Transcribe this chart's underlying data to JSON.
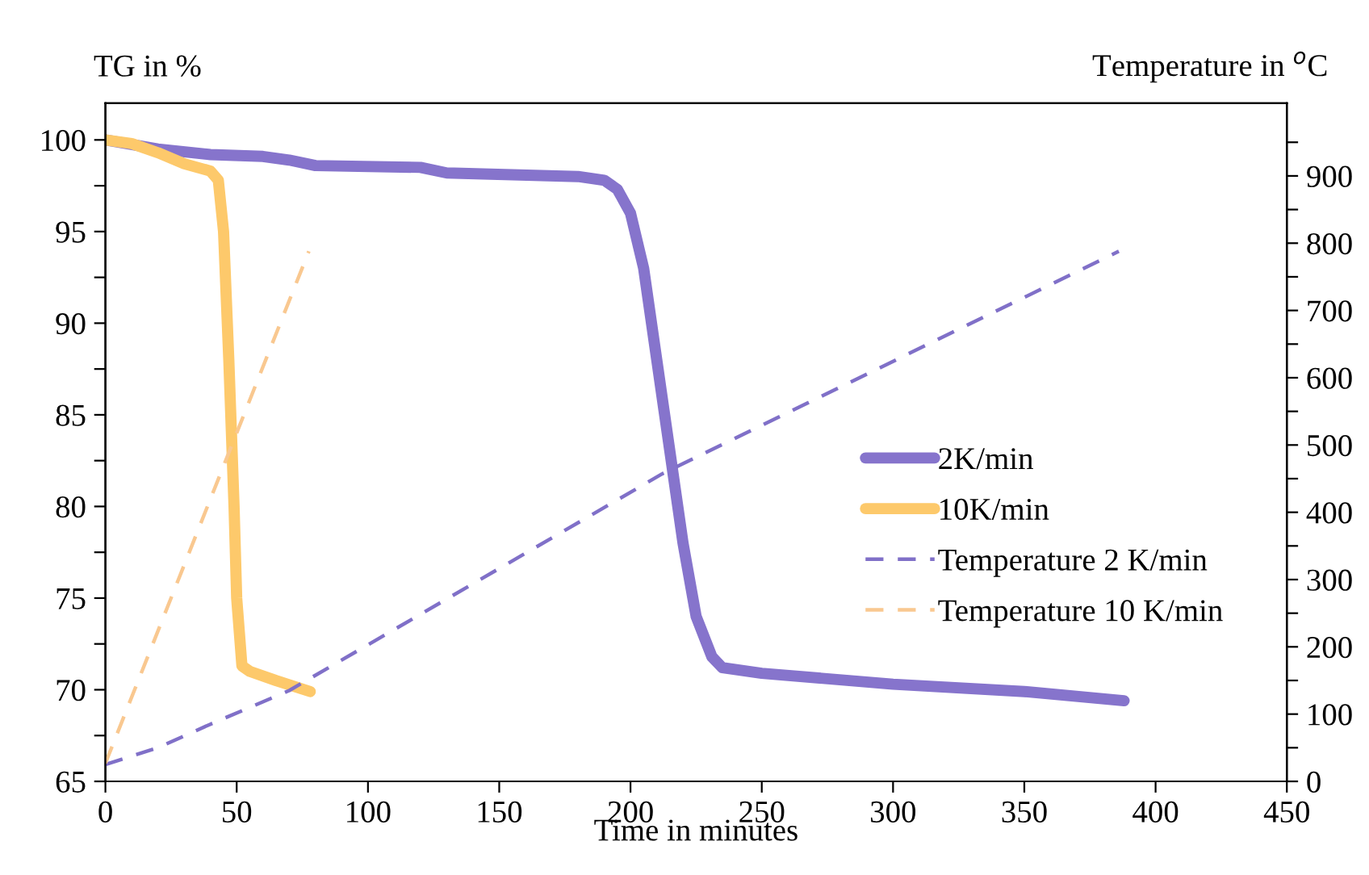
{
  "chart_data": {
    "type": "line",
    "xlabel": "Time in minutes",
    "ylabel": "TG in %",
    "y2label": "Temperature in $^{o}$C",
    "xlim": [
      0,
      450
    ],
    "xticks": [
      0,
      50,
      100,
      150,
      200,
      250,
      300,
      350,
      400,
      450
    ],
    "ylim": [
      65,
      102
    ],
    "yticks": [
      65,
      {
        "value": 67.5,
        "label": null
      },
      70,
      {
        "value": 72.5,
        "label": null
      },
      75,
      {
        "value": 77.5,
        "label": null
      },
      80,
      {
        "value": 82.5,
        "label": null
      },
      85,
      {
        "value": 87.5,
        "label": null
      },
      90,
      {
        "value": 92.5,
        "label": null
      },
      95,
      {
        "value": 97.5,
        "label": null
      },
      100
    ],
    "y2lim": [
      0,
      1008
    ],
    "y2ticks": [
      0,
      {
        "value": 50,
        "label": null
      },
      100,
      {
        "value": 150,
        "label": null
      },
      200,
      {
        "value": 250,
        "label": null
      },
      300,
      {
        "value": 350,
        "label": null
      },
      400,
      {
        "value": 450,
        "label": null
      },
      500,
      {
        "value": 550,
        "label": null
      },
      600,
      {
        "value": 650,
        "label": null
      },
      700,
      {
        "value": 750,
        "label": null
      },
      800,
      {
        "value": 850,
        "label": null
      },
      900,
      {
        "value": 950,
        "label": null
      }
    ],
    "grid": false,
    "legend": "right",
    "marker": "none",
    "series": [
      {
        "name": "2K/min",
        "color": "#8674cc",
        "line_style": "solid",
        "x": [
          0,
          20,
          40,
          60,
          70,
          80,
          120,
          130,
          180,
          190,
          195,
          200,
          205,
          210,
          215,
          220,
          225,
          231,
          235,
          250,
          300,
          350,
          388
        ],
        "values": [
          100,
          99.5,
          99.2,
          99.1,
          98.9,
          98.6,
          98.5,
          98.2,
          98.0,
          97.8,
          97.3,
          96,
          93,
          88,
          83,
          78,
          74,
          71.8,
          71.2,
          70.9,
          70.3,
          69.9,
          69.4
        ]
      },
      {
        "name": "10K/min",
        "color": "#fdc96b",
        "line_style": "solid",
        "x": [
          0,
          10,
          20,
          30,
          40,
          43,
          45,
          47,
          49,
          50,
          52,
          55,
          65,
          78
        ],
        "values": [
          100,
          99.8,
          99.3,
          98.7,
          98.3,
          97.8,
          95,
          88,
          80,
          75,
          71.3,
          71,
          70.5,
          69.9
        ]
      },
      {
        "name": "Temperature 2 K/min",
        "color": "#8070c8",
        "line_style": "dashed",
        "axis": "y2",
        "x": [
          0,
          20,
          40,
          70,
          212,
          386
        ],
        "values": [
          25,
          50,
          85,
          135,
          457,
          788
        ]
      },
      {
        "name": "Temperature 10 K/min",
        "color": "#f9c890",
        "line_style": "dashed",
        "axis": "y2",
        "x": [
          0,
          77.5
        ],
        "values": [
          27,
          788
        ]
      }
    ]
  }
}
